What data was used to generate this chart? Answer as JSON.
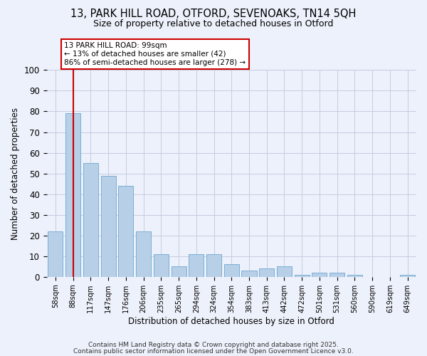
{
  "title_line1": "13, PARK HILL ROAD, OTFORD, SEVENOAKS, TN14 5QH",
  "title_line2": "Size of property relative to detached houses in Otford",
  "xlabel": "Distribution of detached houses by size in Otford",
  "ylabel": "Number of detached properties",
  "bar_labels": [
    "58sqm",
    "88sqm",
    "117sqm",
    "147sqm",
    "176sqm",
    "206sqm",
    "235sqm",
    "265sqm",
    "294sqm",
    "324sqm",
    "354sqm",
    "383sqm",
    "413sqm",
    "442sqm",
    "472sqm",
    "501sqm",
    "531sqm",
    "560sqm",
    "590sqm",
    "619sqm",
    "649sqm"
  ],
  "bar_values": [
    22,
    79,
    55,
    49,
    44,
    22,
    11,
    5,
    11,
    11,
    6,
    3,
    4,
    5,
    1,
    2,
    2,
    1,
    0,
    0,
    1
  ],
  "bar_color": "#b8cfe8",
  "bar_edge_color": "#7aafd4",
  "vline_x": 1,
  "vline_color": "#cc0000",
  "annotation_text": "13 PARK HILL ROAD: 99sqm\n← 13% of detached houses are smaller (42)\n86% of semi-detached houses are larger (278) →",
  "annotation_box_color": "#ffffff",
  "annotation_box_edge": "#cc0000",
  "ylim": [
    0,
    100
  ],
  "yticks": [
    0,
    10,
    20,
    30,
    40,
    50,
    60,
    70,
    80,
    90,
    100
  ],
  "footer_line1": "Contains HM Land Registry data © Crown copyright and database right 2025.",
  "footer_line2": "Contains public sector information licensed under the Open Government Licence v3.0.",
  "bg_color": "#edf1fb",
  "grid_color": "#c5cce0"
}
